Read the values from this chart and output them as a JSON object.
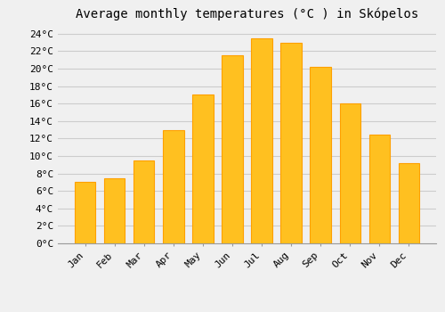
{
  "title": "Average monthly temperatures (°C ) in Skópelos",
  "months": [
    "Jan",
    "Feb",
    "Mar",
    "Apr",
    "May",
    "Jun",
    "Jul",
    "Aug",
    "Sep",
    "Oct",
    "Nov",
    "Dec"
  ],
  "temperatures": [
    7.0,
    7.5,
    9.5,
    13.0,
    17.0,
    21.5,
    23.5,
    23.0,
    20.2,
    16.0,
    12.5,
    9.2
  ],
  "bar_color": "#FFC020",
  "bar_edge_color": "#FFA000",
  "background_color": "#F0F0F0",
  "grid_color": "#CCCCCC",
  "yticks": [
    0,
    2,
    4,
    6,
    8,
    10,
    12,
    14,
    16,
    18,
    20,
    22,
    24
  ],
  "ylim": [
    0,
    25
  ],
  "title_fontsize": 10,
  "tick_fontsize": 8,
  "font_family": "monospace"
}
